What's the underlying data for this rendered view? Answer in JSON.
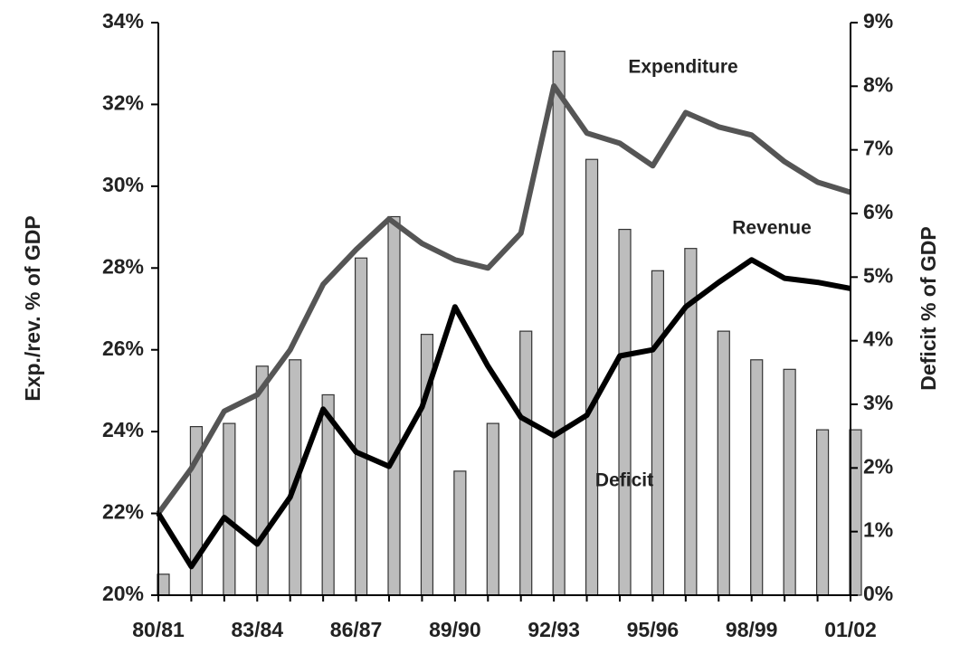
{
  "chart_data": {
    "type": "combo",
    "categories": [
      "80/81",
      null,
      null,
      "83/84",
      null,
      null,
      "86/87",
      null,
      null,
      "89/90",
      null,
      null,
      "92/93",
      null,
      null,
      "95/96",
      null,
      null,
      "98/99",
      null,
      null,
      "01/02"
    ],
    "ylabel": "Exp./rev. % of GDP",
    "y2label": "Deficit % of GDP",
    "ylim": [
      20,
      34
    ],
    "yticks": [
      {
        "value": 20,
        "label": "20%"
      },
      {
        "value": 22,
        "label": "22%"
      },
      {
        "value": 24,
        "label": "24%"
      },
      {
        "value": 26,
        "label": "26%"
      },
      {
        "value": 28,
        "label": "28%"
      },
      {
        "value": 30,
        "label": "30%"
      },
      {
        "value": 32,
        "label": "32%"
      },
      {
        "value": 34,
        "label": "34%"
      }
    ],
    "y2lim": [
      0,
      9
    ],
    "y2ticks": [
      {
        "value": 0,
        "label": "0%"
      },
      {
        "value": 1,
        "label": "1%"
      },
      {
        "value": 2,
        "label": "2%"
      },
      {
        "value": 3,
        "label": "3%"
      },
      {
        "value": 4,
        "label": "4%"
      },
      {
        "value": 5,
        "label": "5%"
      },
      {
        "value": 6,
        "label": "6%"
      },
      {
        "value": 7,
        "label": "7%"
      },
      {
        "value": 8,
        "label": "8%"
      },
      {
        "value": 9,
        "label": "9%"
      }
    ],
    "series": [
      {
        "name": "Deficit",
        "type": "bar",
        "axis": "y2",
        "color": "#bdbdbd",
        "values": [
          0.33,
          2.65,
          2.7,
          3.6,
          3.7,
          3.15,
          5.3,
          5.95,
          4.1,
          1.95,
          2.7,
          4.15,
          8.55,
          6.85,
          5.75,
          5.1,
          5.45,
          4.15,
          3.7,
          3.55,
          2.6,
          2.6
        ]
      },
      {
        "name": "Expenditure",
        "type": "line",
        "axis": "y",
        "color": "#555555",
        "values": [
          22.0,
          23.1,
          24.5,
          24.9,
          26.0,
          27.6,
          28.45,
          29.2,
          28.6,
          28.2,
          28.0,
          28.85,
          32.45,
          31.3,
          31.05,
          30.5,
          31.8,
          31.45,
          31.25,
          30.6,
          30.1,
          29.85
        ]
      },
      {
        "name": "Revenue",
        "type": "line",
        "axis": "y",
        "color": "#000000",
        "values": [
          22.0,
          20.7,
          21.9,
          21.25,
          22.4,
          24.55,
          23.5,
          23.15,
          24.6,
          27.05,
          25.6,
          24.35,
          23.9,
          24.4,
          25.85,
          26.0,
          27.05,
          27.65,
          28.2,
          27.75,
          27.65,
          27.5
        ]
      }
    ]
  }
}
